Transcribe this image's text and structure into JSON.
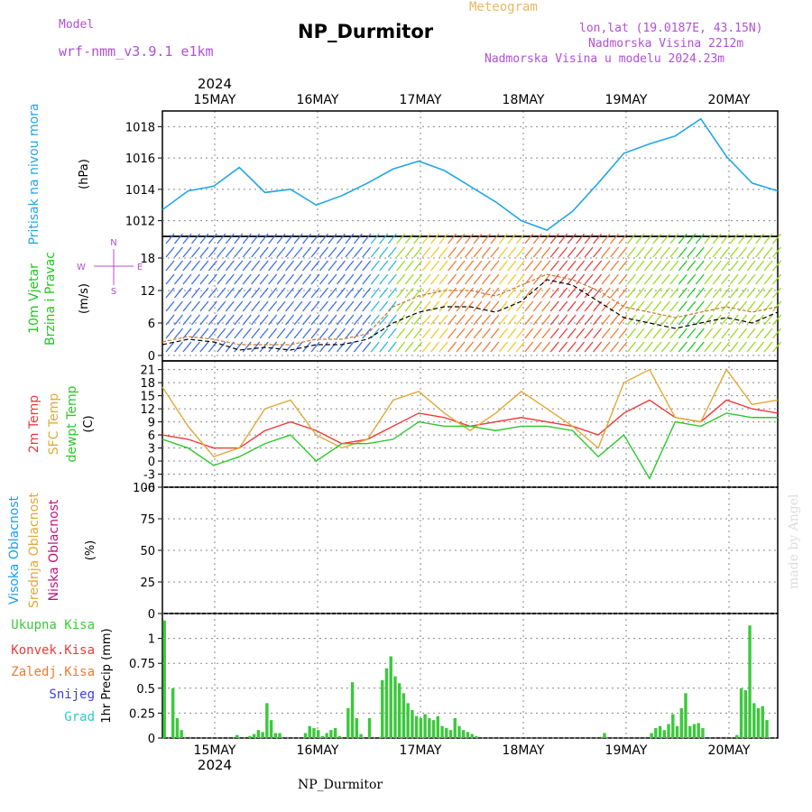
{
  "header": {
    "model_label": "Model",
    "model_value": "wrf-nmm_v3.9.1 e1km",
    "title": "NP_Durmitor",
    "subtitle": "Meteogram",
    "location": "lon,lat (19.0187E, 43.15N)",
    "elevation": "Nadmorska Visina 2212m",
    "model_elevation": "Nadmorska Visina u modelu 2024.23m"
  },
  "footer": {
    "station": "NP_Durmitor",
    "credit": "made by Angel"
  },
  "colors": {
    "pressure": "#22a6e6",
    "wind_label": "#1ec81e",
    "temp2m": "#ee3a3a",
    "sfc_temp": "#e0a93a",
    "dewpoint": "#2bc82b",
    "cloud_high": "#1a9ef0",
    "cloud_mid": "#e0a93a",
    "cloud_low": "#c0147a",
    "precip_total": "#3cc83c",
    "precip_conv": "#ee3a3a",
    "precip_frz": "#f07830",
    "precip_snow": "#3c3ce0",
    "precip_hail": "#30c8c8",
    "compass": "#b04fd8"
  },
  "chart_data": [
    {
      "type": "line",
      "panel": "pressure",
      "ylabel_left": "Pritisak na nivou mora",
      "ylabel_unit": "(hPa)",
      "ylim": [
        1011.0,
        1019.0
      ],
      "yticks": [
        "1012",
        "1014",
        "1016",
        "1018"
      ],
      "x_tick_labels": [
        "15MAY",
        "16MAY",
        "17MAY",
        "18MAY",
        "19MAY",
        "20MAY"
      ],
      "year_label": "2024",
      "grid": true,
      "x_hours": [
        0,
        6,
        12,
        18,
        24,
        30,
        36,
        42,
        48,
        54,
        60,
        66,
        72,
        78,
        84,
        90,
        96,
        102,
        108,
        114,
        120,
        126,
        132,
        138,
        144
      ],
      "series": [
        {
          "values": [
            1012.7,
            1013.9,
            1014.2,
            1015.4,
            1013.8,
            1014.0,
            1013.0,
            1013.6,
            1014.4,
            1015.3,
            1015.8,
            1015.2,
            1014.2,
            1013.2,
            1012.0,
            1011.4,
            1012.6,
            1014.4,
            1016.3,
            1016.9,
            1017.4,
            1018.5,
            1016.1,
            1014.4,
            1013.9
          ]
        }
      ]
    },
    {
      "type": "line",
      "panel": "wind",
      "ylabel_left": "10m Vjetar",
      "ylabel_left2": "Brzina i Pravac",
      "ylabel_unit": "(m/s)",
      "compass_n": "N",
      "compass_s": "S",
      "compass_e": "E",
      "compass_w": "W",
      "ylim": [
        -1,
        22
      ],
      "yticks": [
        "0",
        "6",
        "12",
        "18"
      ],
      "grid": true,
      "x_hours": [
        0,
        6,
        12,
        18,
        24,
        30,
        36,
        42,
        48,
        54,
        60,
        66,
        72,
        78,
        84,
        90,
        96,
        102,
        108,
        114,
        120,
        126,
        132,
        138,
        144
      ],
      "series": [
        {
          "values": [
            2,
            3,
            2.5,
            1,
            1.5,
            1,
            2,
            2,
            3,
            6,
            8,
            9,
            9,
            8,
            10,
            14,
            13,
            10,
            7,
            6,
            5,
            6,
            7,
            6,
            8
          ]
        },
        {
          "values": [
            2.5,
            3.5,
            3,
            2,
            2,
            2,
            3,
            3,
            4,
            9,
            11,
            12,
            12,
            11,
            13,
            15,
            14,
            12,
            9,
            8,
            7,
            8,
            9,
            8,
            9
          ]
        }
      ]
    },
    {
      "type": "line",
      "panel": "temperature",
      "ylabel_left": "2m Temp",
      "ylabel_left2": "SFC Temp",
      "ylabel_left3": "dewpt Temp",
      "ylabel_unit": "(C)",
      "ylim": [
        -6,
        23
      ],
      "yticks": [
        "-6",
        "-3",
        "0",
        "3",
        "6",
        "9",
        "12",
        "15",
        "18",
        "21"
      ],
      "grid": true,
      "x_hours": [
        0,
        6,
        12,
        18,
        24,
        30,
        36,
        42,
        48,
        54,
        60,
        66,
        72,
        78,
        84,
        90,
        96,
        102,
        108,
        114,
        120,
        126,
        132,
        138,
        144
      ],
      "series": [
        {
          "name": "2m Temp",
          "values": [
            6,
            5,
            3,
            3,
            7,
            9,
            7,
            4,
            5,
            8,
            11,
            10,
            8,
            9,
            10,
            9,
            8,
            6,
            11,
            14,
            10,
            9,
            14,
            12,
            11
          ]
        },
        {
          "name": "SFC Temp",
          "values": [
            17,
            8,
            1,
            3,
            12,
            14,
            6,
            3,
            5,
            14,
            16,
            11,
            7,
            11,
            16,
            12,
            8,
            3,
            18,
            21,
            10,
            9,
            21,
            13,
            14
          ]
        },
        {
          "name": "dewpt Temp",
          "values": [
            5,
            3,
            -1,
            1,
            4,
            6,
            0,
            4,
            4,
            5,
            9,
            8,
            8,
            7,
            8,
            8,
            7,
            1,
            6,
            -4,
            9,
            8,
            11,
            10,
            10
          ]
        }
      ]
    },
    {
      "type": "bar",
      "panel": "clouds",
      "ylabel_left": "Visoka Oblacnost",
      "ylabel_left2": "Srednja Oblacnost",
      "ylabel_left3": "Niska Oblacnost",
      "ylabel_unit": "(%)",
      "ylim": [
        0,
        100
      ],
      "yticks": [
        "0",
        "25",
        "50",
        "75",
        "100"
      ],
      "grid": true,
      "x_hours": [
        2,
        4,
        6,
        8,
        10,
        12,
        14,
        16,
        18,
        20,
        22,
        24,
        26,
        28,
        30,
        32,
        34,
        36,
        38,
        40,
        42,
        44,
        46,
        48,
        50,
        52,
        54,
        56,
        58,
        60,
        62,
        64,
        66,
        68,
        70,
        72,
        74,
        76,
        78,
        80,
        82,
        84,
        86,
        88,
        90,
        92,
        94,
        96,
        98,
        100,
        102,
        104,
        106,
        108,
        110,
        112,
        114,
        116,
        118,
        120,
        122,
        124,
        126,
        128,
        130,
        132,
        134,
        136,
        138,
        140,
        142,
        144
      ],
      "series": [
        {
          "name": "Visoka Oblacnost",
          "values": [
            0,
            0,
            0,
            0,
            0,
            0,
            0,
            0,
            0,
            0,
            0,
            0,
            0,
            0,
            0,
            0,
            0,
            0,
            0,
            0,
            0,
            0,
            0,
            0,
            0,
            0,
            0,
            0,
            0,
            0,
            0,
            0,
            0,
            0,
            0,
            0,
            0,
            0,
            0,
            0,
            0,
            0,
            0,
            0,
            0,
            0,
            0,
            0,
            0,
            0,
            0,
            0,
            0,
            0,
            0,
            0,
            0,
            0,
            0,
            0,
            0,
            0,
            0,
            0,
            0,
            0,
            0,
            0,
            0,
            0,
            0,
            0
          ]
        },
        {
          "name": "Srednja Oblacnost",
          "values": [
            0,
            0,
            0,
            0,
            0,
            0,
            0,
            0,
            0,
            0,
            0,
            0,
            0,
            0,
            0,
            0,
            0,
            0,
            0,
            0,
            0,
            0,
            0,
            0,
            0,
            0,
            0,
            0,
            0,
            0,
            0,
            0,
            0,
            0,
            0,
            0,
            0,
            0,
            0,
            0,
            0,
            0,
            0,
            0,
            0,
            0,
            0,
            0,
            0,
            0,
            0,
            0,
            0,
            0,
            0,
            0,
            0,
            0,
            0,
            0,
            0,
            0,
            0,
            0,
            0,
            0,
            0,
            0,
            0,
            0,
            0,
            0
          ]
        },
        {
          "name": "Niska Oblacnost",
          "values": [
            0,
            0,
            0,
            0,
            0,
            0,
            0,
            0,
            0,
            0,
            0,
            0,
            0,
            0,
            0,
            0,
            0,
            0,
            0,
            0,
            0,
            0,
            0,
            0,
            0,
            0,
            0,
            0,
            0,
            0,
            0,
            0,
            0,
            0,
            0,
            0,
            0,
            0,
            0,
            0,
            0,
            0,
            0,
            0,
            0,
            0,
            0,
            0,
            0,
            0,
            0,
            0,
            0,
            0,
            0,
            0,
            0,
            0,
            0,
            0,
            0,
            0,
            0,
            0,
            0,
            0,
            0,
            0,
            0,
            0,
            0,
            0
          ]
        }
      ]
    },
    {
      "type": "bar",
      "panel": "precipitation",
      "legend": [
        "Ukupna Kisa",
        "Konvek.Kisa",
        "Zaledj.Kisa",
        "Snijeg",
        "Grad"
      ],
      "ylabel_unit": "1hr Precip (mm)",
      "ylim": [
        0,
        1.25
      ],
      "yticks": [
        "0",
        "0.25",
        "0.5",
        "0.75",
        "1"
      ],
      "x_tick_labels": [
        "15MAY",
        "16MAY",
        "17MAY",
        "18MAY",
        "19MAY",
        "20MAY"
      ],
      "year_label": "2024",
      "grid": true,
      "x_hours": [
        0,
        1,
        2,
        3,
        4,
        5,
        17,
        20,
        21,
        22,
        23,
        24,
        25,
        26,
        27,
        33,
        34,
        35,
        36,
        37,
        38,
        39,
        40,
        41,
        42,
        43,
        44,
        45,
        46,
        47,
        48,
        51,
        52,
        53,
        54,
        55,
        56,
        57,
        58,
        59,
        60,
        61,
        62,
        63,
        64,
        65,
        66,
        67,
        68,
        69,
        70,
        71,
        72,
        73,
        103,
        114,
        115,
        116,
        117,
        118,
        119,
        120,
        121,
        122,
        123,
        124,
        125,
        126,
        134,
        135,
        136,
        137,
        138,
        139,
        140,
        141,
        142,
        143
      ],
      "series": [
        {
          "name": "Ukupna Kisa",
          "values": [
            1.18,
            0.0,
            0.5,
            0.2,
            0.08,
            0.0,
            0.03,
            0.02,
            0.04,
            0.08,
            0.06,
            0.35,
            0.18,
            0.05,
            0.05,
            0.05,
            0.12,
            0.1,
            0.08,
            0.02,
            0.05,
            0.08,
            0.1,
            0.02,
            0.0,
            0.3,
            0.56,
            0.2,
            0.04,
            0.0,
            0.2,
            0.58,
            0.7,
            0.82,
            0.62,
            0.55,
            0.45,
            0.35,
            0.28,
            0.22,
            0.2,
            0.24,
            0.2,
            0.18,
            0.22,
            0.12,
            0.1,
            0.08,
            0.2,
            0.12,
            0.08,
            0.06,
            0.04,
            0.02,
            0.05,
            0.05,
            0.1,
            0.12,
            0.08,
            0.14,
            0.24,
            0.12,
            0.3,
            0.45,
            0.12,
            0.14,
            0.15,
            0.1,
            0.03,
            0.5,
            0.48,
            1.13,
            0.35,
            0.3,
            0.32,
            0.18,
            0.0,
            0.0
          ]
        }
      ]
    }
  ]
}
